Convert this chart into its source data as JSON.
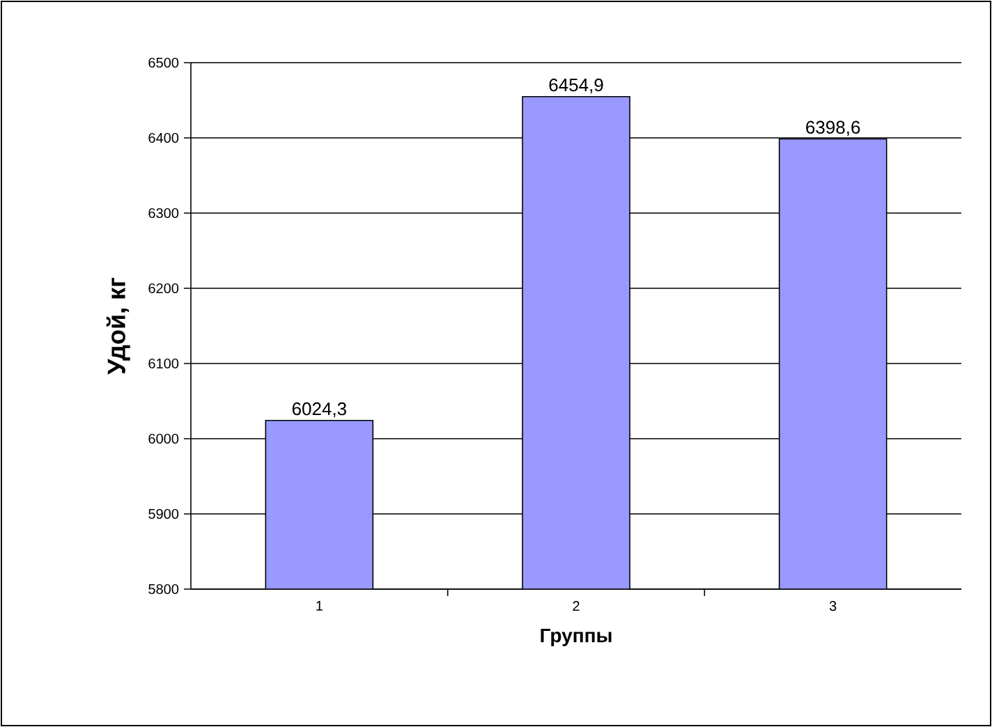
{
  "chart_data": {
    "type": "bar",
    "xlabel": "Группы",
    "ylabel": "Удой, кг",
    "categories": [
      "1",
      "2",
      "3"
    ],
    "values": [
      6024.3,
      6454.9,
      6398.6
    ],
    "value_labels": [
      "6024,3",
      "6454,9",
      "6398,6"
    ],
    "color": "#9999ff",
    "ylim": [
      5800,
      6500
    ],
    "yticks": [
      5800,
      5900,
      6000,
      6100,
      6200,
      6300,
      6400,
      6500
    ],
    "grid": "y"
  }
}
